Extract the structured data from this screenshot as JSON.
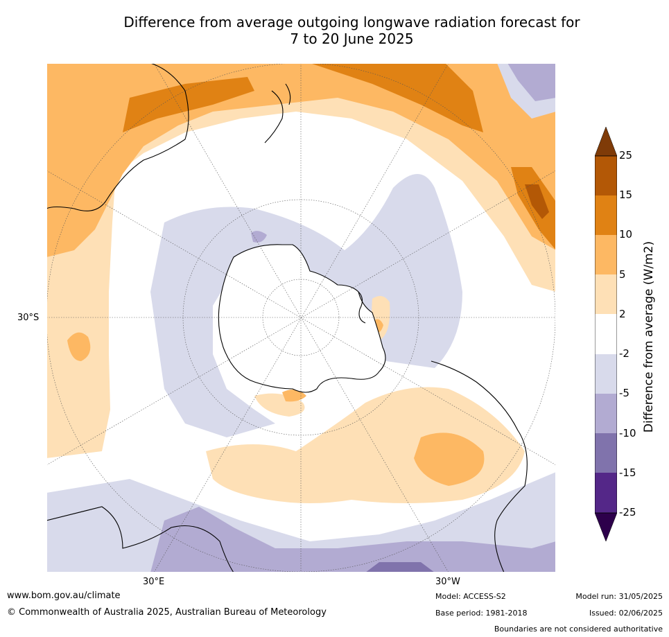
{
  "title": {
    "line1": "Difference from average outgoing longwave radiation forecast for",
    "line2": "7 to 20 June 2025"
  },
  "map": {
    "projection": "south-polar-stereographic",
    "lat_label": "30°S",
    "lon_labels": {
      "east": "30°E",
      "west": "30°W"
    }
  },
  "legend": {
    "label": "Difference from average (W/m2)",
    "ticks": [
      "25",
      "15",
      "10",
      "5",
      "2",
      "-2",
      "-5",
      "-10",
      "-15",
      "-25"
    ],
    "colors": {
      "above_25": "#7f3b08",
      "15_25": "#b35806",
      "10_15": "#e08214",
      "5_10": "#fdb863",
      "2_5": "#fee0b6",
      "neutral": "#ffffff",
      "m2_m5": "#d8daeb",
      "m5_m10": "#b2abd2",
      "m10_m15": "#8073ac",
      "m15_m25": "#542788",
      "below_m25": "#2d004b"
    }
  },
  "footer": {
    "website": "www.bom.gov.au/climate",
    "copyright": "© Commonwealth of Australia 2025, Australian Bureau of Meteorology",
    "model": "Model: ACCESS-S2",
    "base_period": "Base period: 1981-2018",
    "model_run": "Model run: 31/05/2025",
    "issued": "Issued: 02/06/2025",
    "disclaimer": "Boundaries are not considered authoritative"
  }
}
